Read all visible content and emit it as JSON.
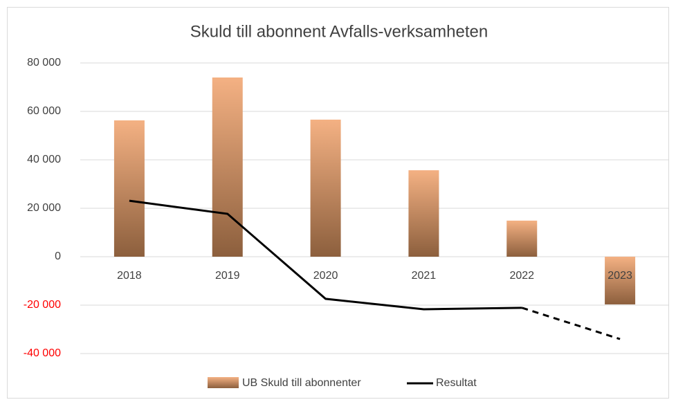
{
  "chart_data": {
    "type": "bar_line",
    "title": "Skuld till abonnent Avfalls-verksamheten",
    "categories": [
      "2018",
      "2019",
      "2020",
      "2021",
      "2022",
      "2023"
    ],
    "series": [
      {
        "name": "UB Skuld till abonnenter",
        "type": "bar",
        "color": [
          "#f4b183",
          "#8c5f3d"
        ],
        "values": [
          56300,
          74000,
          56600,
          35700,
          14900,
          -19700
        ]
      },
      {
        "name": "Resultat",
        "type": "line",
        "color": "#000000",
        "values": [
          23100,
          17700,
          -17400,
          -21700,
          -21100,
          -34000
        ],
        "segment_styles": [
          "solid",
          "solid",
          "solid",
          "solid",
          "dashed"
        ]
      }
    ],
    "ylim": [
      -40000,
      80000
    ],
    "yticks": [
      {
        "value": -40000,
        "label": "-40 000"
      },
      {
        "value": -20000,
        "label": "-20 000"
      },
      0,
      {
        "value": 20000,
        "label": "20 000"
      },
      {
        "value": 40000,
        "label": "40 000"
      },
      {
        "value": 60000,
        "label": "60 000"
      },
      {
        "value": 80000,
        "label": "80 000"
      }
    ],
    "negative_tick_color": "#ff0000",
    "grid": true
  }
}
